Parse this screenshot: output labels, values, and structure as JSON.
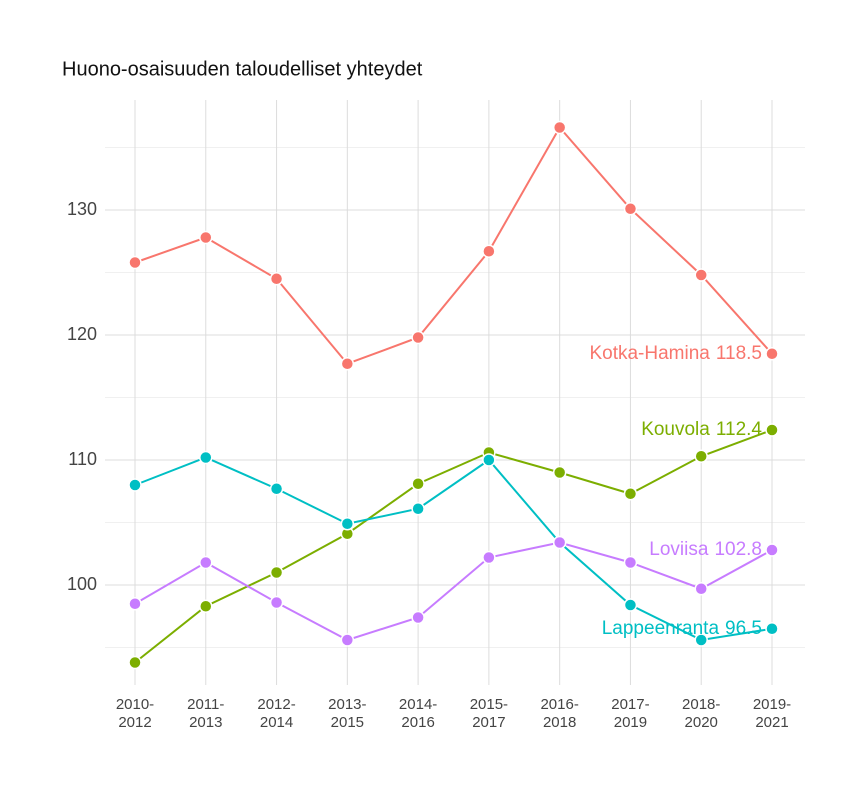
{
  "chart_data": {
    "type": "line",
    "title": "Huono-osaisuuden taloudelliset yhteydet",
    "categories": [
      "2010-\n2012",
      "2011-\n2013",
      "2012-\n2014",
      "2013-\n2015",
      "2014-\n2016",
      "2015-\n2017",
      "2016-\n2018",
      "2017-\n2019",
      "2018-\n2020",
      "2019-\n2021"
    ],
    "series": [
      {
        "name": "Kotka-Hamina",
        "color": "#f8766d",
        "values": [
          125.8,
          127.8,
          124.5,
          117.7,
          119.8,
          126.7,
          136.6,
          130.1,
          124.8,
          118.5
        ]
      },
      {
        "name": "Kouvola",
        "color": "#7cae00",
        "values": [
          93.8,
          98.3,
          101.0,
          104.1,
          108.1,
          110.6,
          109.0,
          107.3,
          110.3,
          112.4
        ]
      },
      {
        "name": "Lappeenranta",
        "color": "#00bfc4",
        "values": [
          108.0,
          110.2,
          107.7,
          104.9,
          106.1,
          110.0,
          103.4,
          98.4,
          95.6,
          96.5
        ]
      },
      {
        "name": "Loviisa",
        "color": "#c77cff",
        "values": [
          98.5,
          101.8,
          98.6,
          95.6,
          97.4,
          102.2,
          103.4,
          101.8,
          99.7,
          102.8
        ]
      }
    ],
    "ylim": [
      92,
      138.8
    ],
    "yticks": [
      100,
      110,
      120,
      130
    ],
    "minor_yticks": [
      95,
      105,
      115,
      125,
      135
    ],
    "grid": true
  }
}
